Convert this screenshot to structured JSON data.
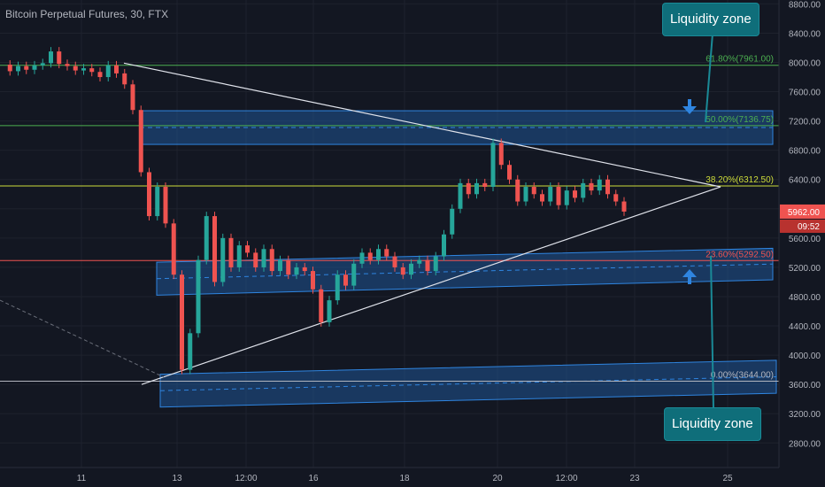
{
  "symbol_title": "Bitcoin Perpetual Futures, 30, FTX",
  "callouts": {
    "top": "Liquidity zone",
    "bottom": "Liquidity zone"
  },
  "price_tag": {
    "value": "5962.00",
    "timer": "09:52"
  },
  "colors": {
    "background": "#131722",
    "grid": "#1e222d",
    "axis_text": "#b2b5be",
    "up": "#26a69a",
    "down": "#ef5350",
    "zone_fill": "#1f5a9e",
    "zone_line": "#2f85e0",
    "trendline": "#e0e3eb",
    "callout": "#0f6e7a"
  },
  "chart_data": {
    "type": "candlestick",
    "title": "Bitcoin Perpetual Futures, 30, FTX",
    "y_ticks": [
      2800,
      3200,
      3600,
      4000,
      4400,
      4800,
      5200,
      5600,
      6000,
      6400,
      6800,
      7200,
      7600,
      8000,
      8400,
      8800
    ],
    "ylim": [
      2550,
      8950
    ],
    "x_ticks": [
      "11",
      "13",
      "12:00",
      "16",
      "18",
      "20",
      "12:00",
      "23",
      "25"
    ],
    "grid": true,
    "fib_levels": [
      {
        "label": "61.80%(7961.00)",
        "value": 7961.0,
        "color": "#4caf50"
      },
      {
        "label": "50.00%(7136.75)",
        "value": 7136.75,
        "color": "#4caf50"
      },
      {
        "label": "38.20%(6312.50)",
        "value": 6312.5,
        "color": "#cddc39"
      },
      {
        "label": "23.60%(5292.50)",
        "value": 5292.5,
        "color": "#ef5350"
      },
      {
        "label": "0.00%(3644.00)",
        "value": 3644.0,
        "color": "#b2b5be"
      }
    ],
    "price_path": [
      [
        "11",
        7970
      ],
      [
        "11",
        7880
      ],
      [
        "11",
        7950
      ],
      [
        "11",
        7900
      ],
      [
        "11",
        7960
      ],
      [
        "11",
        7990
      ],
      [
        "11",
        8150
      ],
      [
        "11",
        7980
      ],
      [
        "11",
        7950
      ],
      [
        "11",
        7890
      ],
      [
        "11",
        7920
      ],
      [
        "11",
        7870
      ],
      [
        "11",
        7800
      ],
      [
        "11",
        7960
      ],
      [
        "11",
        7850
      ],
      [
        "11",
        7700
      ],
      [
        "13",
        7350
      ],
      [
        "13",
        6500
      ],
      [
        "13",
        5900
      ],
      [
        "13",
        6300
      ],
      [
        "13",
        5800
      ],
      [
        "13",
        5100
      ],
      [
        "13",
        3800
      ],
      [
        "13",
        4300
      ],
      [
        "13",
        5300
      ],
      [
        "13",
        5900
      ],
      [
        "13",
        5000
      ],
      [
        "13",
        5600
      ],
      [
        "13",
        5200
      ],
      [
        "13",
        5500
      ],
      [
        "12:00",
        5400
      ],
      [
        "12:00",
        5200
      ],
      [
        "12:00",
        5450
      ],
      [
        "12:00",
        5150
      ],
      [
        "12:00",
        5300
      ],
      [
        "12:00",
        5100
      ],
      [
        "12:00",
        5200
      ],
      [
        "16",
        5150
      ],
      [
        "16",
        4900
      ],
      [
        "16",
        4450
      ],
      [
        "16",
        4750
      ],
      [
        "16",
        5100
      ],
      [
        "16",
        4950
      ],
      [
        "16",
        5250
      ],
      [
        "16",
        5400
      ],
      [
        "16",
        5300
      ],
      [
        "16",
        5450
      ],
      [
        "16",
        5350
      ],
      [
        "18",
        5200
      ],
      [
        "18",
        5100
      ],
      [
        "18",
        5250
      ],
      [
        "18",
        5300
      ],
      [
        "18",
        5150
      ],
      [
        "18",
        5350
      ],
      [
        "18",
        5650
      ],
      [
        "18",
        6000
      ],
      [
        "18",
        6350
      ],
      [
        "18",
        6200
      ],
      [
        "18",
        6350
      ],
      [
        "20",
        6300
      ],
      [
        "20",
        6900
      ],
      [
        "20",
        6600
      ],
      [
        "20",
        6400
      ],
      [
        "20",
        6100
      ],
      [
        "20",
        6300
      ],
      [
        "20",
        6200
      ],
      [
        "20",
        6100
      ],
      [
        "20",
        6300
      ],
      [
        "12:00",
        6050
      ],
      [
        "12:00",
        6250
      ],
      [
        "12:00",
        6150
      ],
      [
        "12:00",
        6350
      ],
      [
        "12:00",
        6250
      ],
      [
        "12:00",
        6400
      ],
      [
        "12:00",
        6200
      ],
      [
        "12:00",
        6100
      ],
      [
        "12:00",
        5962
      ]
    ],
    "zones": [
      {
        "value_top": 7340,
        "value_bottom": 6880
      },
      {
        "value_top_left": 5270,
        "value_top_right": 5460,
        "value_bottom_left": 4820,
        "value_bottom_right": 5030
      },
      {
        "value_top_left": 3740,
        "value_top_right": 3930,
        "value_bottom_left": 3290,
        "value_bottom_right": 3480
      }
    ],
    "trendlines": [
      {
        "from": [
          "11",
          7990
        ],
        "to": [
          "25",
          6300
        ]
      },
      {
        "from": [
          "13",
          3600
        ],
        "to": [
          "25",
          6300
        ]
      }
    ]
  }
}
